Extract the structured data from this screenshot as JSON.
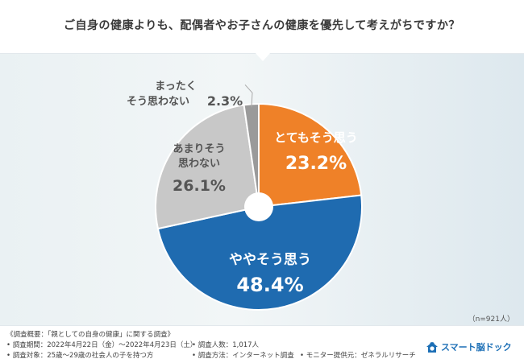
{
  "question": "ご自身の健康よりも、配偶者やお子さんの健康を優先して考えがちですか？",
  "sample_size": "（n=921人）",
  "colors": {
    "strongly_agree": "#ef8128",
    "somewhat_agree": "#1f6bb0",
    "somewhat_disagree": "#c8c8c8",
    "strongly_disagree": "#9a9a9a"
  },
  "chart_data": {
    "type": "pie",
    "style": "donut",
    "slices": [
      {
        "label": "とてもそう思う",
        "value": 23.2,
        "value_label": "23.2%",
        "color": "#ef8128"
      },
      {
        "label": "ややそう思う",
        "value": 48.4,
        "value_label": "48.4%",
        "color": "#1f6bb0"
      },
      {
        "label": "あまりそう思わない",
        "value": 26.1,
        "value_label": "26.1%",
        "color": "#c8c8c8"
      },
      {
        "label": "まったくそう思わない",
        "value": 2.3,
        "value_label": "2.3%",
        "color": "#9a9a9a"
      }
    ]
  },
  "footer": {
    "overview": "《調査概要：「親としての自身の健康」に関する調査》",
    "period": "• 調査期間：2022年4月22日（金）〜2022年4月23日（土）",
    "target": "• 調査対象：25歳〜29歳の社会人の子を持つ方",
    "count": "• 調査人数：1,017人",
    "method": "• 調査方法：インターネット調査",
    "provider": "• モニター提供元：ゼネラルリサーチ",
    "brand_name": "スマート脳ドック"
  }
}
